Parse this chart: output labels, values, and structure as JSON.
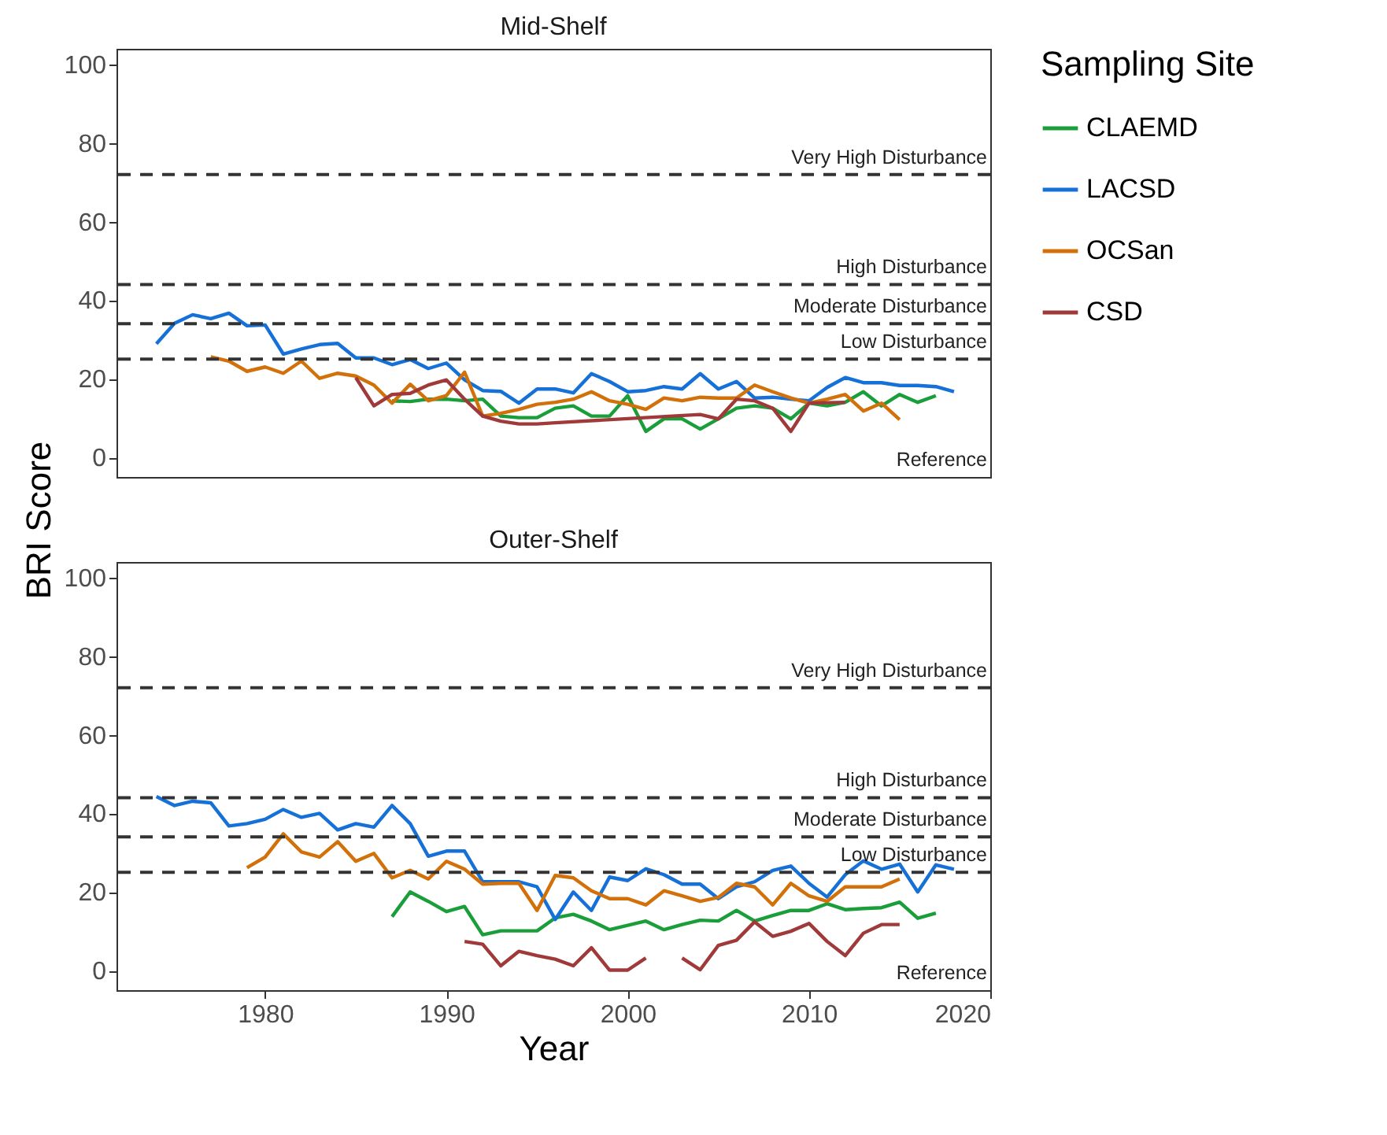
{
  "chart_data": [
    {
      "type": "line",
      "title": "Mid-Shelf",
      "ylabel": "BRI Score",
      "legend_title": "Sampling Site",
      "legend": "right",
      "tick_labels": "y",
      "grid": false,
      "line_style": "solid",
      "xlim": [
        1971.8,
        2020
      ],
      "ylim": [
        -5,
        104
      ],
      "yticks": [
        0,
        20,
        40,
        60,
        80,
        100
      ],
      "ref_lines": [
        {
          "axis": "y",
          "value": 72,
          "label": "Very High Disturbance",
          "color": "#333333",
          "line_style": "dashed"
        },
        {
          "axis": "y",
          "value": 44,
          "label": "High Disturbance",
          "color": "#333333",
          "line_style": "dashed"
        },
        {
          "axis": "y",
          "value": 34,
          "label": "Moderate Disturbance",
          "color": "#333333",
          "line_style": "dashed"
        },
        {
          "axis": "y",
          "value": 25,
          "label": "Low Disturbance",
          "color": "#333333",
          "line_style": "dashed"
        }
      ],
      "annotations": [
        "Reference"
      ],
      "series": [
        {
          "name": "CLAEMD",
          "color": "#1a9e3a",
          "x": [
            1987,
            1988,
            1989,
            1990,
            1991,
            1992,
            1993,
            1994,
            1995,
            1996,
            1997,
            1998,
            1999,
            2000,
            2001,
            2002,
            2003,
            2004,
            2005,
            2006,
            2007,
            2008,
            2009,
            2010,
            2011,
            2012,
            2013,
            2014,
            2015,
            2016,
            2017
          ],
          "values": [
            14.4,
            14.2,
            14.8,
            14.8,
            14.4,
            14.8,
            10.5,
            10.1,
            10.1,
            12.5,
            13.1,
            10.5,
            10.5,
            15.7,
            6.6,
            9.8,
            9.8,
            7.2,
            9.8,
            12.5,
            13.1,
            12.5,
            9.8,
            13.8,
            13.1,
            14,
            16.7,
            13.1,
            16,
            14,
            15.7
          ]
        },
        {
          "name": "LACSD",
          "color": "#1570d8",
          "x": [
            1974,
            1975,
            1976,
            1977,
            1978,
            1979,
            1980,
            1981,
            1982,
            1983,
            1984,
            1985,
            1986,
            1987,
            1988,
            1989,
            1990,
            1991,
            1992,
            1993,
            1994,
            1995,
            1996,
            1997,
            1998,
            1999,
            2000,
            2001,
            2002,
            2003,
            2004,
            2005,
            2006,
            2007,
            2008,
            2009,
            2010,
            2011,
            2012,
            2013,
            2014,
            2015,
            2016,
            2017,
            2018
          ],
          "values": [
            28.9,
            34.1,
            36.3,
            35.3,
            36.7,
            33.5,
            33.7,
            26.3,
            27.6,
            28.7,
            29,
            25.3,
            25.3,
            23.6,
            24.9,
            22.6,
            24,
            19.7,
            17,
            16.8,
            13.8,
            17.4,
            17.4,
            16.4,
            21.3,
            19.3,
            16.7,
            17,
            18,
            17.4,
            21.3,
            17.4,
            19.3,
            15.1,
            15.3,
            14.8,
            14.4,
            17.8,
            20.3,
            19,
            19,
            18.3,
            18.3,
            18,
            16.7
          ]
        },
        {
          "name": "OCSan",
          "color": "#d2700a",
          "x": [
            1977,
            1978,
            1979,
            1980,
            1981,
            1982,
            1983,
            1984,
            1985,
            1986,
            1987,
            1988,
            1989,
            1990,
            1991,
            1992,
            1993,
            1994,
            1995,
            1996,
            1997,
            1998,
            1999,
            2000,
            2001,
            2002,
            2003,
            2004,
            2005,
            2006,
            2007,
            2008,
            2009,
            2010,
            2011,
            2012,
            2013,
            2014,
            2015
          ],
          "values": [
            25.6,
            24.5,
            21.9,
            23,
            21.4,
            24.5,
            20.1,
            21.4,
            20.7,
            18.4,
            13.8,
            18.6,
            14.4,
            15.7,
            21.7,
            10.5,
            11.2,
            12.2,
            13.5,
            14,
            14.8,
            16.7,
            14.4,
            13.5,
            12.2,
            15.1,
            14.4,
            15.3,
            15.1,
            15.1,
            18.4,
            16.7,
            15.1,
            13.8,
            14.8,
            16,
            11.8,
            13.8,
            9.6
          ]
        },
        {
          "name": "CSD",
          "color": "#a03a3a",
          "x": [
            1985,
            1986,
            1987,
            1988,
            1989,
            1990,
            1991,
            1992,
            1993,
            1994,
            1995,
            1996,
            2004,
            2005,
            2006,
            2007,
            2008,
            2009,
            2010,
            2011,
            2012
          ],
          "values": [
            20.3,
            13.1,
            16,
            16.3,
            18.4,
            19.7,
            14.8,
            10.5,
            9.2,
            8.5,
            8.5,
            8.8,
            10.9,
            9.8,
            14.8,
            14.4,
            12.5,
            6.6,
            13.8,
            13.9,
            14
          ]
        }
      ]
    },
    {
      "type": "line",
      "title": "Outer-Shelf",
      "xlabel": "Year",
      "grid": false,
      "line_style": "solid",
      "xlim": [
        1971.8,
        2020
      ],
      "xticks": [
        1980,
        1990,
        2000,
        2010,
        2020
      ],
      "ylim": [
        -5,
        104
      ],
      "yticks": [
        0,
        20,
        40,
        60,
        80,
        100
      ],
      "ref_lines": [
        {
          "axis": "y",
          "value": 72,
          "label": "Very High Disturbance",
          "color": "#333333",
          "line_style": "dashed"
        },
        {
          "axis": "y",
          "value": 44,
          "label": "High Disturbance",
          "color": "#333333",
          "line_style": "dashed"
        },
        {
          "axis": "y",
          "value": 34,
          "label": "Moderate Disturbance",
          "color": "#333333",
          "line_style": "dashed"
        },
        {
          "axis": "y",
          "value": 25,
          "label": "Low Disturbance",
          "color": "#333333",
          "line_style": "dashed"
        }
      ],
      "annotations": [
        "Reference"
      ],
      "series": [
        {
          "name": "CLAEMD",
          "color": "#1a9e3a",
          "x": [
            1987,
            1988,
            1989,
            1990,
            1991,
            1992,
            1993,
            1994,
            1995,
            1996,
            1997,
            1998,
            1999,
            2000,
            2001,
            2002,
            2003,
            2004,
            2005,
            2006,
            2007,
            2008,
            2009,
            2010,
            2011,
            2012,
            2013,
            2014,
            2015,
            2016,
            2017
          ],
          "values": [
            13.7,
            20,
            17.6,
            15,
            16.3,
            9.1,
            10.1,
            10.1,
            10.1,
            13.4,
            14.3,
            12.6,
            10.4,
            11.5,
            12.6,
            10.4,
            11.7,
            12.8,
            12.6,
            15.3,
            12.6,
            14,
            15.3,
            15.3,
            17,
            15.5,
            15.8,
            16,
            17.4,
            13.3,
            14.6
          ]
        },
        {
          "name": "LACSD",
          "color": "#1570d8",
          "x": [
            1974,
            1975,
            1976,
            1977,
            1978,
            1979,
            1980,
            1981,
            1982,
            1983,
            1984,
            1985,
            1986,
            1987,
            1988,
            1989,
            1990,
            1991,
            1992,
            1993,
            1994,
            1995,
            1996,
            1997,
            1998,
            1999,
            2000,
            2001,
            2002,
            2003,
            2004,
            2005,
            2006,
            2007,
            2008,
            2009,
            2010,
            2011,
            2012,
            2013,
            2014,
            2015,
            2016,
            2017,
            2018
          ],
          "values": [
            44.3,
            42,
            43.1,
            42.7,
            36.8,
            37.4,
            38.5,
            41,
            39,
            40,
            35.8,
            37.4,
            36.5,
            42,
            37.4,
            29.1,
            30.4,
            30.4,
            22.6,
            22.6,
            22.6,
            21.3,
            13,
            20,
            15.3,
            23.8,
            22.9,
            25.9,
            24.4,
            22,
            22,
            18.3,
            21.3,
            22.6,
            25.5,
            26.6,
            22.2,
            18.7,
            24.4,
            27.9,
            25.8,
            27.1,
            20,
            26.9,
            25.8
          ]
        },
        {
          "name": "OCSan",
          "color": "#d2700a",
          "x": [
            1979,
            1980,
            1981,
            1982,
            1983,
            1984,
            1985,
            1986,
            1987,
            1988,
            1989,
            1990,
            1991,
            1992,
            1993,
            1994,
            1995,
            1996,
            1997,
            1998,
            1999,
            2000,
            2001,
            2002,
            2003,
            2004,
            2005,
            2006,
            2007,
            2008,
            2009,
            2010,
            2011,
            2012,
            2013,
            2014,
            2015
          ],
          "values": [
            26.2,
            28.9,
            34.8,
            30.2,
            28.9,
            32.8,
            27.8,
            29.8,
            23.6,
            25.5,
            23.3,
            27.8,
            25.8,
            22,
            22.2,
            22.2,
            15.3,
            24.2,
            23.6,
            20.3,
            18.3,
            18.3,
            16.7,
            20.3,
            19,
            17.6,
            18.6,
            22.2,
            21.3,
            16.7,
            22.2,
            19,
            17.6,
            21.3,
            21.3,
            21.3,
            23.3
          ]
        },
        {
          "name": "CSD",
          "color": "#a03a3a",
          "x": [
            1991,
            1992,
            1993,
            1994,
            1995,
            1996,
            1997,
            1998,
            1999,
            2000,
            2001,
            2002,
            2003,
            2004,
            2005,
            2006,
            2007,
            2008,
            2009,
            2010,
            2011,
            2012,
            2013,
            2014,
            2015
          ],
          "values": [
            7.4,
            6.7,
            1.2,
            4.9,
            3.8,
            2.9,
            1.2,
            5.8,
            0.1,
            0.1,
            3.2,
            null,
            3.2,
            0.2,
            6.4,
            7.7,
            12.4,
            8.7,
            10,
            12,
            7.4,
            3.8,
            9.5,
            11.7,
            11.7
          ]
        }
      ]
    }
  ]
}
